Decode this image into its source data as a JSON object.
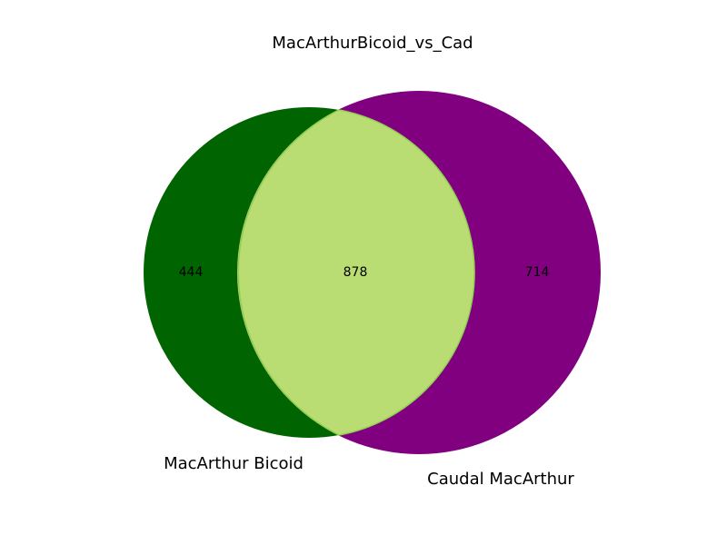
{
  "title": "MacArthurBicoid_vs_Cad",
  "sets": [
    {
      "name": "MacArthur Bicoid",
      "only_count": "444",
      "color": "#006400"
    },
    {
      "name": "Caudal MacArthur",
      "only_count": "714",
      "color": "#800080"
    }
  ],
  "intersection": {
    "count": "878",
    "color": "#b9dc73",
    "edge_color": "#8fd14f"
  },
  "chart_data": {
    "type": "venn2",
    "title": "MacArthurBicoid_vs_Cad",
    "labels": [
      "MacArthur Bicoid",
      "Caudal MacArthur"
    ],
    "subsets": {
      "10": 444,
      "01": 714,
      "11": 878
    }
  }
}
